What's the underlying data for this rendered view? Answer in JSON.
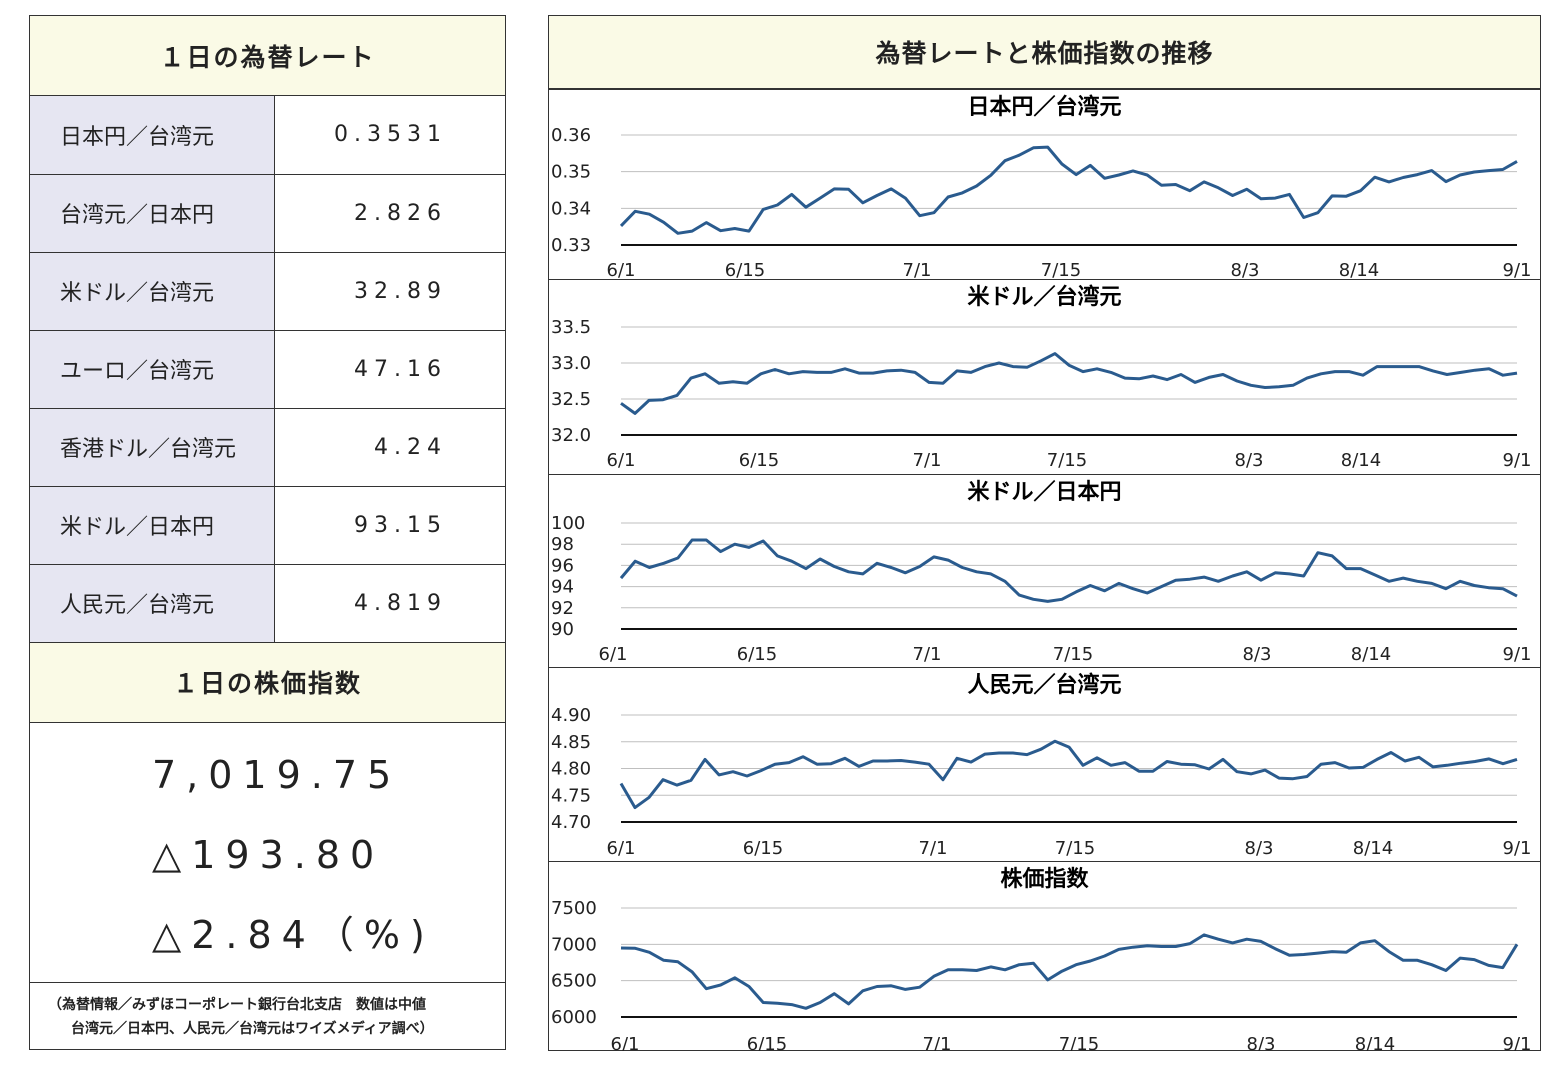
{
  "rates_panel": {
    "title": "１日の為替レート",
    "rows": [
      {
        "name": "日本円／台湾元",
        "value": "0.3531"
      },
      {
        "name": "台湾元／日本円",
        "value": "2.826"
      },
      {
        "name": "米ドル／台湾元",
        "value": "32.89"
      },
      {
        "name": "ユーロ／台湾元",
        "value": "47.16"
      },
      {
        "name": "香港ドル／台湾元",
        "value": "4.24"
      },
      {
        "name": "米ドル／日本円",
        "value": "93.15"
      },
      {
        "name": "人民元／台湾元",
        "value": "4.819"
      }
    ]
  },
  "stock_panel": {
    "title": "１日の株価指数",
    "index_value": "7,019.75",
    "change": "△193.80",
    "change_pct": "△2.84（%)"
  },
  "note": {
    "line1": "（為替情報／みずほコーポレート銀行台北支店　数値は中値",
    "line2": "台湾元／日本円、人民元／台湾元はワイズメディア調べ）"
  },
  "right_panel": {
    "title": "為替レートと株価指数の推移"
  },
  "colors": {
    "line": "#2a5b8e",
    "header_bg": "#fafae6",
    "label_bg": "#e6e6f2"
  },
  "chart_data": [
    {
      "type": "line",
      "title": "日本円／台湾元",
      "ylim": [
        0.33,
        0.36
      ],
      "yticks": [
        "0.33",
        "0.34",
        "0.35",
        "0.36"
      ],
      "xticks": [
        "6/1",
        "6/15",
        "7/1",
        "7/15",
        "8/3",
        "8/14",
        "9/1"
      ],
      "values": [
        0.3352,
        0.3392,
        0.3384,
        0.3362,
        0.3332,
        0.3338,
        0.3361,
        0.3339,
        0.3345,
        0.3338,
        0.3397,
        0.3409,
        0.3438,
        0.3403,
        0.3428,
        0.3453,
        0.3452,
        0.3415,
        0.3435,
        0.3453,
        0.3428,
        0.338,
        0.3388,
        0.3431,
        0.3442,
        0.3461,
        0.349,
        0.353,
        0.3545,
        0.3565,
        0.3567,
        0.3521,
        0.3492,
        0.3517,
        0.3482,
        0.3491,
        0.3502,
        0.3491,
        0.3463,
        0.3465,
        0.3448,
        0.3472,
        0.3456,
        0.3435,
        0.3452,
        0.3426,
        0.3428,
        0.3438,
        0.3375,
        0.3388,
        0.3434,
        0.3433,
        0.3448,
        0.3485,
        0.3472,
        0.3484,
        0.3492,
        0.3503,
        0.3473,
        0.3491,
        0.3499,
        0.3503,
        0.3506,
        0.3528
      ]
    },
    {
      "type": "line",
      "title": "米ドル／台湾元",
      "ylim": [
        32.0,
        33.5
      ],
      "yticks": [
        "32.0",
        "32.5",
        "33.0",
        "33.5"
      ],
      "xticks": [
        "6/1",
        "6/15",
        "7/1",
        "7/15",
        "8/3",
        "8/14",
        "9/1"
      ],
      "values": [
        32.44,
        32.3,
        32.48,
        32.49,
        32.55,
        32.79,
        32.85,
        32.72,
        32.74,
        32.72,
        32.85,
        32.91,
        32.85,
        32.88,
        32.87,
        32.87,
        32.92,
        32.86,
        32.86,
        32.89,
        32.9,
        32.87,
        32.73,
        32.72,
        32.89,
        32.87,
        32.95,
        33.0,
        32.95,
        32.94,
        33.03,
        33.13,
        32.97,
        32.88,
        32.92,
        32.87,
        32.79,
        32.78,
        32.82,
        32.77,
        32.84,
        32.73,
        32.8,
        32.84,
        32.75,
        32.69,
        32.66,
        32.67,
        32.69,
        32.79,
        32.85,
        32.88,
        32.88,
        32.83,
        32.95,
        32.95,
        32.95,
        32.95,
        32.89,
        32.84,
        32.87,
        32.9,
        32.92,
        32.83,
        32.86
      ]
    },
    {
      "type": "line",
      "title": "米ドル／日本円",
      "ylim": [
        90,
        100
      ],
      "yticks": [
        "90",
        "92",
        "94",
        "96",
        "98",
        "100"
      ],
      "xticks": [
        "6/1",
        "6/15",
        "7/1",
        "7/15",
        "8/3",
        "8/14",
        "9/1"
      ],
      "values": [
        94.8,
        96.4,
        95.8,
        96.2,
        96.7,
        98.4,
        98.4,
        97.3,
        98.0,
        97.7,
        98.3,
        96.9,
        96.4,
        95.7,
        96.6,
        95.9,
        95.4,
        95.2,
        96.2,
        95.8,
        95.3,
        95.9,
        96.8,
        96.5,
        95.8,
        95.4,
        95.2,
        94.5,
        93.2,
        92.8,
        92.6,
        92.8,
        93.5,
        94.1,
        93.6,
        94.3,
        93.8,
        93.4,
        94.0,
        94.6,
        94.7,
        94.9,
        94.5,
        95.0,
        95.4,
        94.6,
        95.3,
        95.2,
        95.0,
        97.2,
        96.9,
        95.7,
        95.7,
        95.1,
        94.5,
        94.8,
        94.5,
        94.3,
        93.8,
        94.5,
        94.1,
        93.9,
        93.8,
        93.1
      ]
    },
    {
      "type": "line",
      "title": "人民元／台湾元",
      "ylim": [
        4.7,
        4.9
      ],
      "yticks": [
        "4.70",
        "4.75",
        "4.80",
        "4.85",
        "4.90"
      ],
      "xticks": [
        "6/1",
        "6/15",
        "7/1",
        "7/15",
        "8/3",
        "8/14",
        "9/1"
      ],
      "values": [
        4.772,
        4.727,
        4.746,
        4.779,
        4.769,
        4.778,
        4.817,
        4.788,
        4.794,
        4.786,
        4.796,
        4.808,
        4.811,
        4.822,
        4.808,
        4.809,
        4.819,
        4.804,
        4.814,
        4.814,
        4.815,
        4.812,
        4.808,
        4.779,
        4.819,
        4.812,
        4.827,
        4.829,
        4.829,
        4.826,
        4.836,
        4.851,
        4.84,
        4.806,
        4.82,
        4.806,
        4.811,
        4.795,
        4.795,
        4.813,
        4.808,
        4.807,
        4.799,
        4.817,
        4.794,
        4.79,
        4.797,
        4.782,
        4.781,
        4.785,
        4.808,
        4.811,
        4.801,
        4.802,
        4.817,
        4.83,
        4.814,
        4.821,
        4.803,
        4.806,
        4.81,
        4.813,
        4.818,
        4.809,
        4.817
      ]
    },
    {
      "type": "line",
      "title": "株価指数",
      "ylim": [
        6000,
        7500
      ],
      "yticks": [
        "6000",
        "6500",
        "7000",
        "7500"
      ],
      "xticks": [
        "6/1",
        "6/15",
        "7/1",
        "7/15",
        "8/3",
        "8/14",
        "9/1"
      ],
      "values": [
        6950,
        6945,
        6890,
        6780,
        6760,
        6620,
        6390,
        6440,
        6540,
        6420,
        6200,
        6190,
        6170,
        6120,
        6200,
        6320,
        6180,
        6360,
        6420,
        6430,
        6380,
        6410,
        6560,
        6650,
        6650,
        6640,
        6690,
        6650,
        6720,
        6740,
        6510,
        6630,
        6720,
        6770,
        6840,
        6930,
        6960,
        6980,
        6970,
        6970,
        7010,
        7130,
        7070,
        7020,
        7070,
        7040,
        6940,
        6850,
        6860,
        6880,
        6900,
        6890,
        7020,
        7050,
        6900,
        6780,
        6780,
        6720,
        6640,
        6810,
        6790,
        6710,
        6680,
        7000
      ]
    }
  ]
}
